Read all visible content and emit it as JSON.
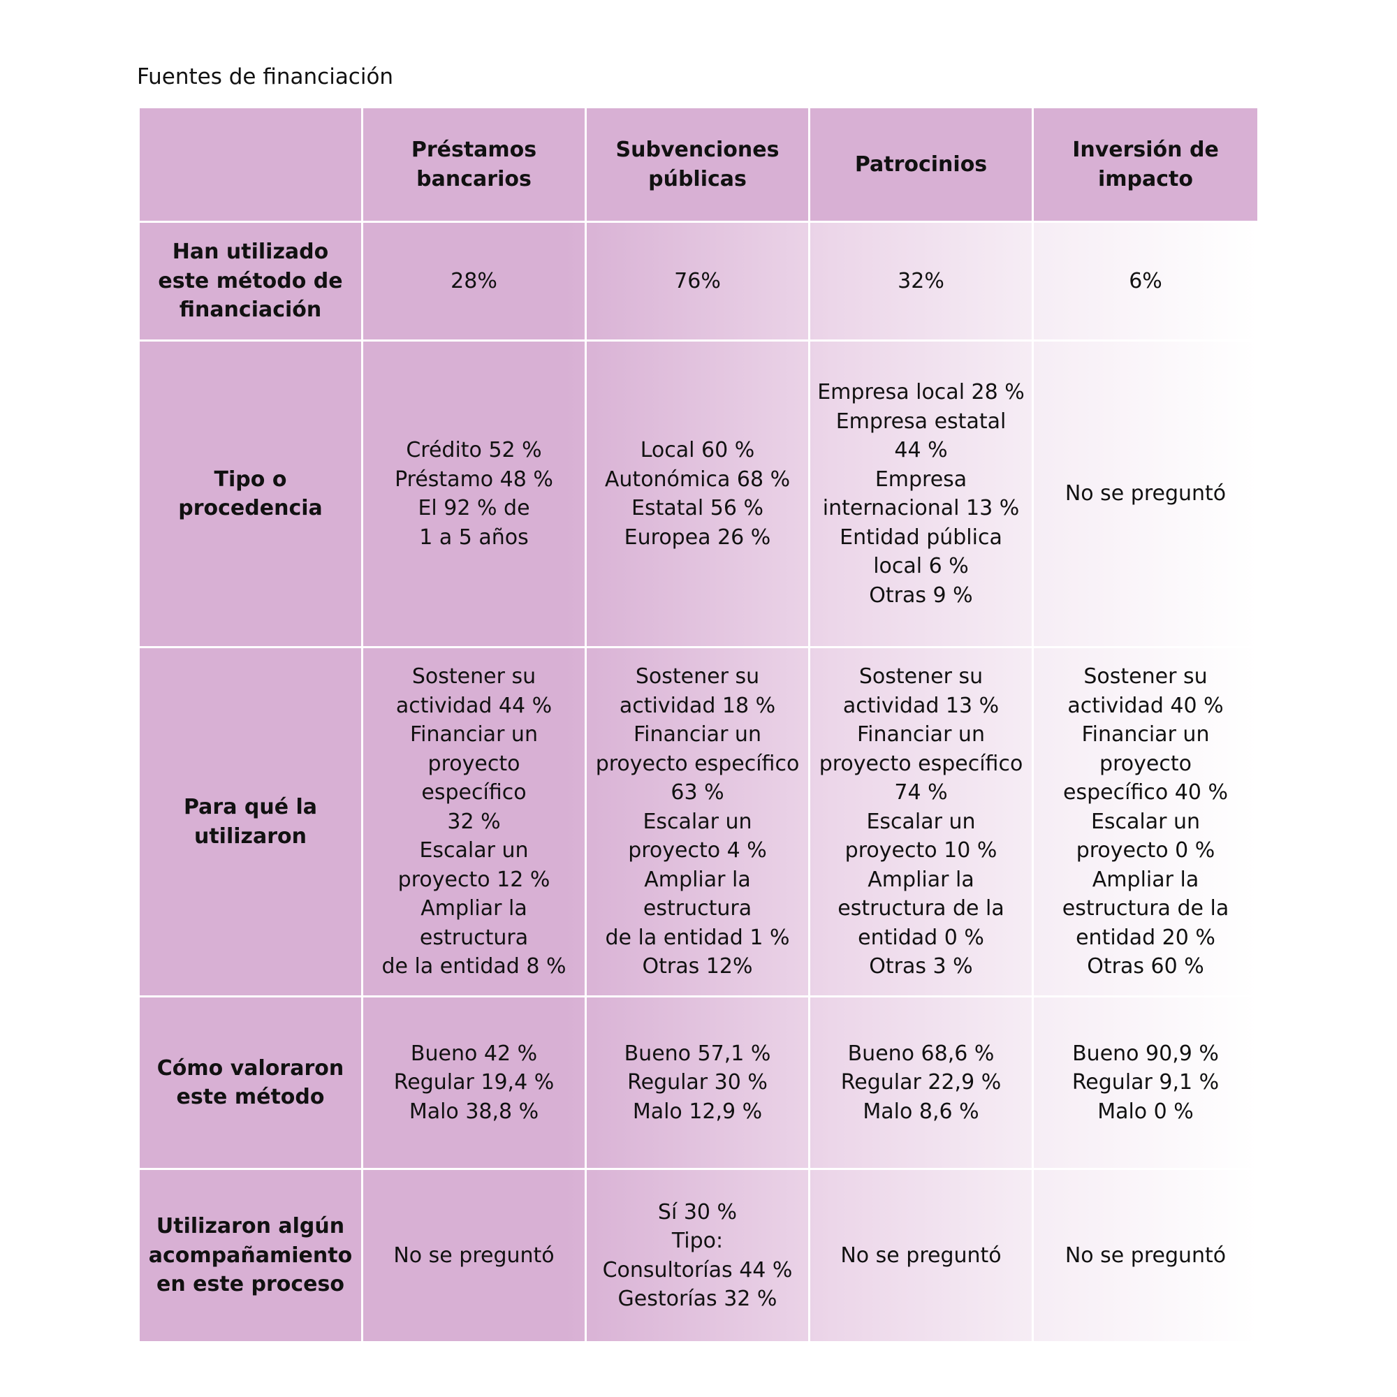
{
  "title": "Fuentes de financiación",
  "table": {
    "columns": [
      [
        "Préstamos",
        "bancarios"
      ],
      [
        "Subvenciones",
        "públicas"
      ],
      [
        "Patrocinios"
      ],
      [
        "Inversión de",
        "impacto"
      ]
    ],
    "rows": [
      {
        "label": [
          "Han utilizado",
          "este método de",
          "financiación"
        ],
        "cells": [
          [
            "28%"
          ],
          [
            "76%"
          ],
          [
            "32%"
          ],
          [
            "6%"
          ]
        ]
      },
      {
        "label": [
          "Tipo o",
          "procedencia"
        ],
        "cells": [
          [
            "Crédito 52 %",
            "Préstamo 48 %",
            "El 92 % de",
            "1 a 5 años"
          ],
          [
            "Local 60 %",
            "Autonómica 68 %",
            "Estatal 56 %",
            "Europea 26 %"
          ],
          [
            "Empresa local 28 %",
            "Empresa estatal",
            "44 %",
            "Empresa",
            "internacional 13 %",
            "Entidad pública",
            "local 6 %",
            "Otras 9 %"
          ],
          [
            "No se preguntó"
          ]
        ]
      },
      {
        "label": [
          "Para qué la",
          "utilizaron"
        ],
        "cells": [
          [
            "Sostener su",
            "actividad 44 %",
            "Financiar un",
            "proyecto",
            "específico",
            "32 %",
            "Escalar un",
            "proyecto 12 %",
            "Ampliar la",
            "estructura",
            "de la entidad 8 %"
          ],
          [
            "Sostener su",
            "actividad 18 %",
            "Financiar un",
            "proyecto específico",
            "63 %",
            "Escalar un",
            "proyecto 4 %",
            "Ampliar la",
            "estructura",
            "de la entidad 1 %",
            "Otras 12%"
          ],
          [
            "Sostener su",
            "actividad 13 %",
            "Financiar un",
            "proyecto específico",
            "74 %",
            "Escalar un",
            "proyecto 10 %",
            "Ampliar la",
            "estructura de la",
            "entidad 0 %",
            "Otras 3 %"
          ],
          [
            "Sostener su",
            "actividad 40 %",
            "Financiar un",
            "proyecto",
            "específico 40 %",
            "Escalar un",
            "proyecto 0 %",
            "Ampliar la",
            "estructura de la",
            "entidad 20 %",
            "Otras 60 %"
          ]
        ]
      },
      {
        "label": [
          "Cómo valoraron",
          "este método"
        ],
        "cells": [
          [
            "Bueno 42 %",
            "Regular 19,4 %",
            "Malo 38,8 %"
          ],
          [
            "Bueno 57,1 %",
            "Regular 30 %",
            "Malo 12,9 %"
          ],
          [
            "Bueno 68,6 %",
            "Regular 22,9 %",
            "Malo 8,6 %"
          ],
          [
            "Bueno 90,9 %",
            "Regular 9,1 %",
            "Malo 0 %"
          ]
        ]
      },
      {
        "label": [
          "Utilizaron algún",
          "acompañamiento",
          "en este proceso"
        ],
        "cells": [
          [
            "No se preguntó"
          ],
          [
            "Sí 30 %",
            "Tipo:",
            "Consultorías 44 %",
            "Gestorías 32 %"
          ],
          [
            "No se preguntó"
          ],
          [
            "No se preguntó"
          ]
        ]
      }
    ]
  }
}
